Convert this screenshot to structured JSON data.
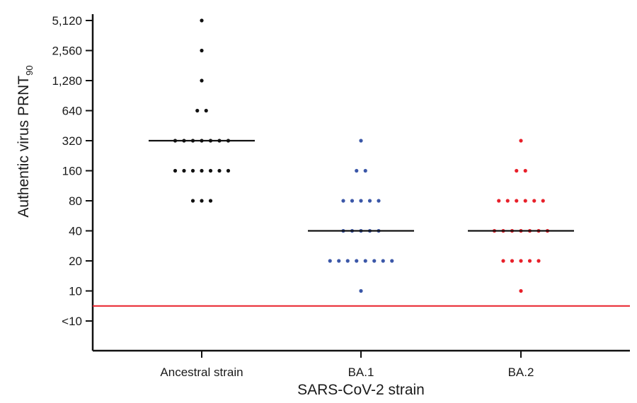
{
  "chart_data": {
    "type": "scatter",
    "subtype": "dot-plot",
    "ylabel_main": "Authentic virus PRNT",
    "ylabel_sub": "90",
    "xlabel": "SARS-CoV-2 strain",
    "y_scale": "log2",
    "y_ticks": [
      "<10",
      "10",
      "20",
      "40",
      "80",
      "160",
      "320",
      "640",
      "1,280",
      "2,560",
      "5,120"
    ],
    "reference_line": {
      "label": "limit of detection",
      "color": "#e8202a"
    },
    "categories": [
      "Ancestral strain",
      "BA.1",
      "BA.2"
    ],
    "series": [
      {
        "category": "Ancestral strain",
        "color": "#111111",
        "median": 320,
        "groups": [
          {
            "value": 5120,
            "count": 1
          },
          {
            "value": 2560,
            "count": 1
          },
          {
            "value": 1280,
            "count": 1
          },
          {
            "value": 640,
            "count": 2
          },
          {
            "value": 320,
            "count": 7
          },
          {
            "value": 160,
            "count": 7
          },
          {
            "value": 80,
            "count": 3
          }
        ]
      },
      {
        "category": "BA.1",
        "color": "#3b57a8",
        "median": 40,
        "groups": [
          {
            "value": 320,
            "count": 1
          },
          {
            "value": 160,
            "count": 2
          },
          {
            "value": 80,
            "count": 5
          },
          {
            "value": 40,
            "count": 5
          },
          {
            "value": 20,
            "count": 8
          },
          {
            "value": 10,
            "count": 1
          }
        ]
      },
      {
        "category": "BA.2",
        "color": "#e8202a",
        "median": 40,
        "groups": [
          {
            "value": 320,
            "count": 1
          },
          {
            "value": 160,
            "count": 2
          },
          {
            "value": 80,
            "count": 6
          },
          {
            "value": 40,
            "count": 7
          },
          {
            "value": 20,
            "count": 5
          },
          {
            "value": 10,
            "count": 1
          }
        ]
      }
    ],
    "grid": false,
    "legend": "none"
  }
}
